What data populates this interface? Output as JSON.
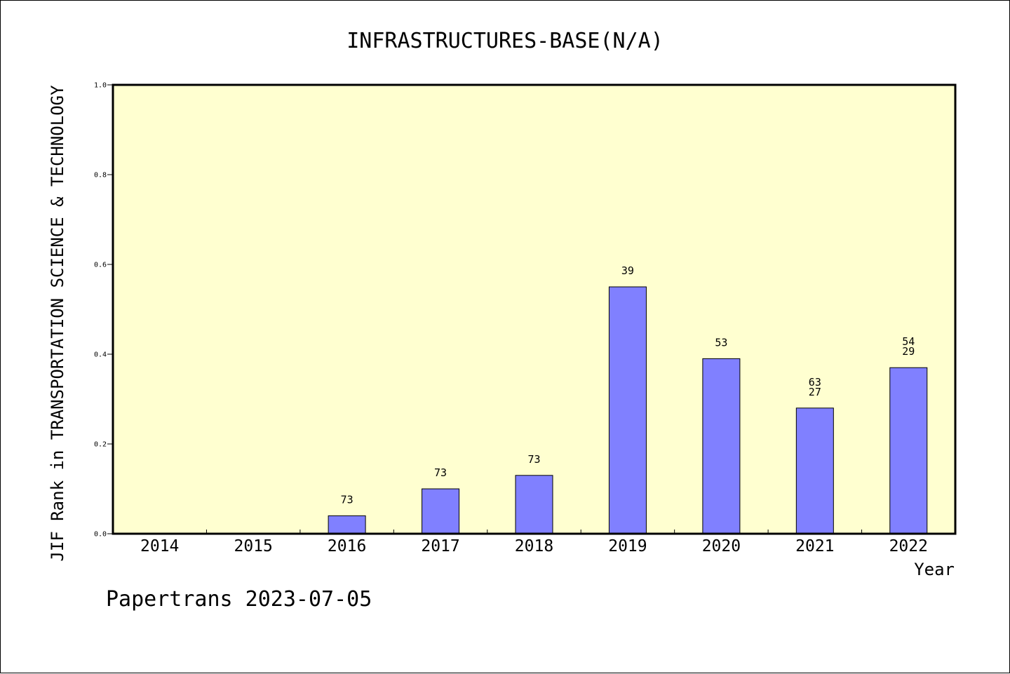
{
  "chart_data": {
    "type": "bar",
    "title": "INFRASTRUCTURES-BASE(N/A)",
    "ylabel": "JIF Rank in TRANSPORTATION SCIENCE & TECHNOLOGY",
    "xlabel": "Year",
    "ylim": [
      0.0,
      1.0
    ],
    "yticks": [
      "0.0",
      "0.2",
      "0.4",
      "0.6",
      "0.8",
      "1.0"
    ],
    "categories": [
      "2014",
      "2015",
      "2016",
      "2017",
      "2018",
      "2019",
      "2020",
      "2021",
      "2022"
    ],
    "values": [
      null,
      null,
      0.04,
      0.1,
      0.13,
      0.55,
      0.39,
      0.28,
      0.37
    ],
    "labels": [
      [],
      [],
      [
        "73"
      ],
      [
        "73"
      ],
      [
        "73"
      ],
      [
        "39"
      ],
      [
        "53"
      ],
      [
        "63",
        "27"
      ],
      [
        "54",
        "29"
      ]
    ],
    "grid": false,
    "colors": {
      "plot_bg": "#ffffd0",
      "bar": "#8080ff"
    }
  },
  "footer": "Papertrans 2023-07-05"
}
